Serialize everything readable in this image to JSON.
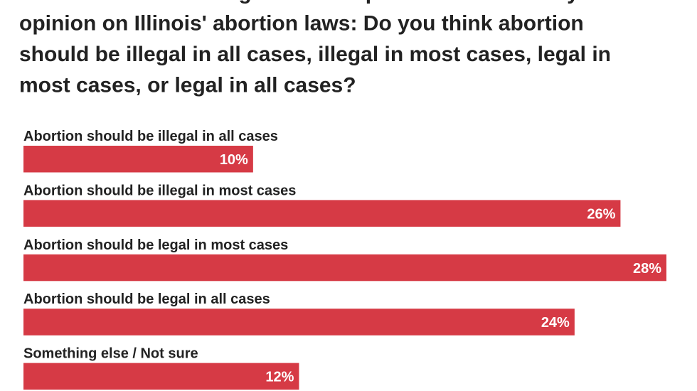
{
  "chart_data": {
    "type": "bar",
    "orientation": "horizontal",
    "title": [
      "life or health is in danger. Which opinion best reflects your",
      "opinion on Illinois' abortion laws: Do you think abortion",
      "should be illegal in all cases, illegal in most cases, legal in",
      "most cases, or legal in all cases?"
    ],
    "categories": [
      "Abortion should be illegal in all cases",
      "Abortion should be illegal in most cases",
      "Abortion should be legal in most cases",
      "Abortion should be legal in all cases",
      "Something else / Not sure"
    ],
    "values": [
      10,
      26,
      28,
      24,
      12
    ],
    "value_labels": [
      "10%",
      "26%",
      "28%",
      "24%",
      "12%"
    ],
    "color": "#d63a45"
  }
}
